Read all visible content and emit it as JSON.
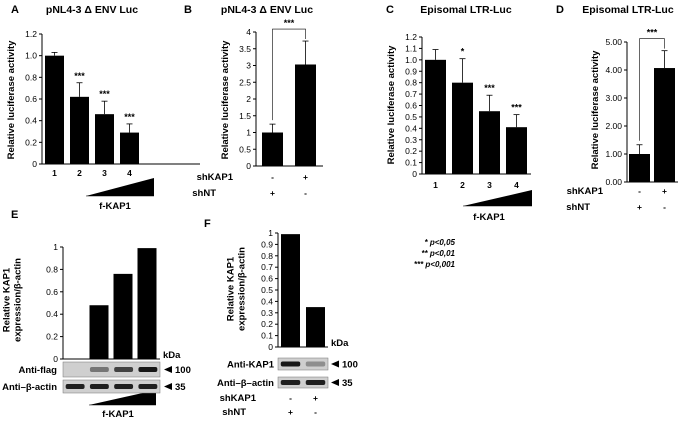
{
  "legend_text": [
    "* p<0,05",
    "** p<0,01",
    "*** p<0,001"
  ],
  "chart_data": [
    {
      "panel": "A",
      "type": "bar",
      "title": "pNL4-3 Δ ENV Luc",
      "ylabel": "Relative luciferase activity",
      "xlabel": "f-KAP1",
      "categories": [
        "1",
        "2",
        "3",
        "4"
      ],
      "values": [
        1.0,
        0.62,
        0.46,
        0.29
      ],
      "errors": [
        0.03,
        0.13,
        0.12,
        0.08
      ],
      "significance": [
        "",
        "***",
        "***",
        "***"
      ],
      "ylim": [
        0,
        1.2
      ],
      "yticks": [
        "0",
        "0.2",
        "0.4",
        "0.6",
        "0.8",
        "1.0",
        "1.2"
      ],
      "ramp": true
    },
    {
      "panel": "B",
      "type": "bar",
      "title": "pNL4-3 Δ ENV Luc",
      "ylabel": "Relative luciferase activity",
      "row_labels": [
        "shKAP1",
        "shNT"
      ],
      "rows": [
        [
          "-",
          "+"
        ],
        [
          "+",
          "-"
        ]
      ],
      "values": [
        1.0,
        3.03
      ],
      "errors": [
        0.25,
        0.7
      ],
      "bracket": "***",
      "ylim": [
        0,
        4
      ],
      "yticks": [
        "0",
        "0.5",
        "1",
        "1.5",
        "2",
        "2.5",
        "3",
        "3.5",
        "4"
      ]
    },
    {
      "panel": "C",
      "type": "bar",
      "title": "Episomal LTR-Luc",
      "ylabel": "Relative luciferase activity",
      "xlabel": "f-KAP1",
      "categories": [
        "1",
        "2",
        "3",
        "4"
      ],
      "values": [
        1.0,
        0.8,
        0.55,
        0.41
      ],
      "errors": [
        0.09,
        0.21,
        0.14,
        0.11
      ],
      "significance": [
        "",
        "*",
        "***",
        "***"
      ],
      "ylim": [
        0,
        1.2
      ],
      "yticks": [
        "0",
        "0.1",
        "0.2",
        "0.3",
        "0.4",
        "0.5",
        "0.6",
        "0.7",
        "0.8",
        "0.9",
        "1.0",
        "1.1",
        "1.2"
      ],
      "ramp": true
    },
    {
      "panel": "D",
      "type": "bar",
      "title": "Episomal LTR-Luc",
      "ylabel": "Relative luciferase activity",
      "row_labels": [
        "shKAP1",
        "shNT"
      ],
      "rows": [
        [
          "-",
          "+"
        ],
        [
          "+",
          "-"
        ]
      ],
      "values": [
        1.0,
        4.07
      ],
      "errors": [
        0.33,
        0.62
      ],
      "bracket": "***",
      "ylim": [
        0,
        5
      ],
      "yticks": [
        "0.00",
        "1.00",
        "2.00",
        "3.00",
        "4.00",
        "5.00"
      ]
    },
    {
      "panel": "E",
      "type": "bar",
      "ylabel": "Relative KAP1 expression/β-actin",
      "values": [
        0.0,
        0.48,
        0.76,
        0.99
      ],
      "ylim": [
        0,
        1
      ],
      "yticks": [
        "0",
        "0.2",
        "0.4",
        "0.6",
        "0.8",
        "1"
      ],
      "kda": "kDa",
      "blots": [
        {
          "label": "Anti-flag",
          "kda": "100"
        },
        {
          "label": "Anti–β-actin",
          "kda": "35"
        }
      ],
      "xlabel": "f-KAP1",
      "ramp": true
    },
    {
      "panel": "F",
      "type": "bar",
      "ylabel": "Relative KAP1 expression/β-actin",
      "values": [
        0.99,
        0.35
      ],
      "ylim": [
        0,
        1
      ],
      "yticks": [
        "0",
        "0.1",
        "0.2",
        "0.3",
        "0.4",
        "0.5",
        "0.6",
        "0.7",
        "0.8",
        "0.9",
        "1"
      ],
      "kda": "kDa",
      "blots": [
        {
          "label": "Anti-KAP1",
          "kda": "100"
        },
        {
          "label": "Anti–β–actin",
          "kda": "35"
        }
      ],
      "row_labels": [
        "shKAP1",
        "shNT"
      ],
      "rows": [
        [
          "-",
          "+"
        ],
        [
          "+",
          "-"
        ]
      ]
    }
  ]
}
